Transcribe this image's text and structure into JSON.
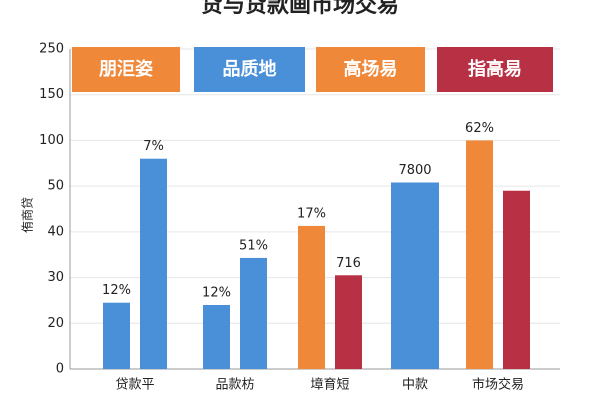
{
  "chart_data": {
    "type": "bar",
    "title": "贷与贷款画市场交易",
    "y_label": "侑商贷",
    "categories": [
      "贷款平",
      "品款枋",
      "墇育短",
      "中款",
      "市场交易"
    ],
    "series": [
      {
        "values": [
          24.5,
          24,
          41.3,
          54,
          100
        ],
        "colors": [
          "#4a90d9",
          "#4a90d9",
          "#f0883a",
          "#4a90d9",
          "#f0883a"
        ]
      },
      {
        "values": [
          80,
          34.3,
          30.5,
          null,
          49
        ],
        "colors": [
          "#4a90d9",
          "#4a90d9",
          "#b83044",
          null,
          "#b83044"
        ]
      }
    ],
    "annotations": [
      "12%",
      "7%",
      "12%",
      "51%",
      "17%",
      "716",
      "7800",
      "62%"
    ],
    "legend": [
      {
        "label": "朋洰姿",
        "color": "#f0883a"
      },
      {
        "label": "品质地",
        "color": "#4a90d9"
      },
      {
        "label": "高场易",
        "color": "#f0883a"
      },
      {
        "label": "指高易",
        "color": "#b83044"
      }
    ],
    "ylim": [
      0,
      250
    ],
    "yticks": [
      0,
      20,
      30,
      40,
      50,
      100,
      150,
      250
    ],
    "grid": true
  }
}
